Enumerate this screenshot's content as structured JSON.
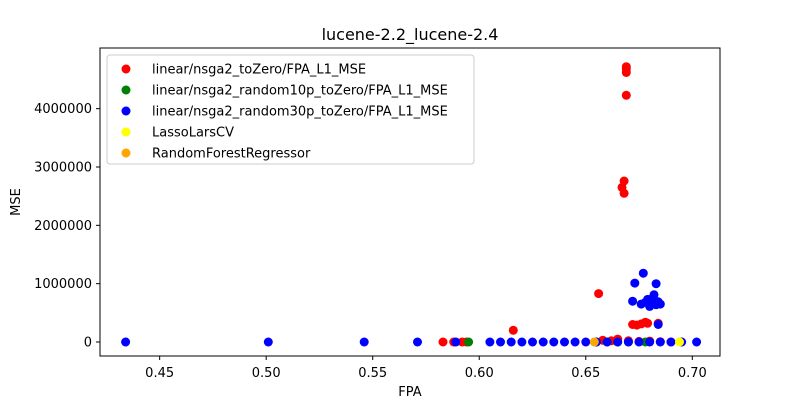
{
  "chart_data": {
    "type": "scatter",
    "title": "lucene-2.2_lucene-2.4",
    "xlabel": "FPA",
    "ylabel": "MSE",
    "xlim": [
      0.422,
      0.713
    ],
    "ylim": [
      -240000,
      5040000
    ],
    "xticks": [
      0.45,
      0.5,
      0.55,
      0.6,
      0.65,
      0.7
    ],
    "xtick_labels": [
      "0.45",
      "0.50",
      "0.55",
      "0.60",
      "0.65",
      "0.70"
    ],
    "yticks": [
      0,
      1000000,
      2000000,
      3000000,
      4000000
    ],
    "ytick_labels": [
      "0",
      "1000000",
      "2000000",
      "3000000",
      "4000000"
    ],
    "grid": false,
    "legend_position": "upper-left",
    "series": [
      {
        "name": "linear/nsga2_toZero/FPA_L1_MSE",
        "color": "#ff0000",
        "points": [
          [
            0.583,
            0
          ],
          [
            0.588,
            0
          ],
          [
            0.592,
            0
          ],
          [
            0.594,
            0
          ],
          [
            0.616,
            200000
          ],
          [
            0.656,
            830000
          ],
          [
            0.658,
            30000
          ],
          [
            0.662,
            20000
          ],
          [
            0.665,
            50000
          ],
          [
            0.667,
            2650000
          ],
          [
            0.668,
            2550000
          ],
          [
            0.668,
            2760000
          ],
          [
            0.669,
            4230000
          ],
          [
            0.669,
            4620000
          ],
          [
            0.669,
            4680000
          ],
          [
            0.669,
            4720000
          ],
          [
            0.672,
            300000
          ],
          [
            0.674,
            290000
          ],
          [
            0.676,
            310000
          ],
          [
            0.678,
            340000
          ],
          [
            0.679,
            320000
          ],
          [
            0.684,
            320000
          ],
          [
            0.67,
            20000
          ],
          [
            0.675,
            10000
          ],
          [
            0.68,
            15000
          ],
          [
            0.685,
            5000
          ],
          [
            0.69,
            0
          ],
          [
            0.695,
            0
          ]
        ]
      },
      {
        "name": "linear/nsga2_random10p_toZero/FPA_L1_MSE",
        "color": "#008000",
        "points": [
          [
            0.595,
            0
          ],
          [
            0.655,
            0
          ],
          [
            0.66,
            0
          ],
          [
            0.665,
            0
          ],
          [
            0.67,
            0
          ],
          [
            0.678,
            0
          ]
        ]
      },
      {
        "name": "linear/nsga2_random30p_toZero/FPA_L1_MSE",
        "color": "#0000ff",
        "points": [
          [
            0.434,
            0
          ],
          [
            0.501,
            0
          ],
          [
            0.546,
            0
          ],
          [
            0.571,
            0
          ],
          [
            0.589,
            0
          ],
          [
            0.605,
            0
          ],
          [
            0.61,
            0
          ],
          [
            0.615,
            0
          ],
          [
            0.62,
            0
          ],
          [
            0.625,
            0
          ],
          [
            0.63,
            0
          ],
          [
            0.635,
            0
          ],
          [
            0.64,
            0
          ],
          [
            0.645,
            0
          ],
          [
            0.65,
            0
          ],
          [
            0.655,
            0
          ],
          [
            0.66,
            0
          ],
          [
            0.665,
            0
          ],
          [
            0.67,
            0
          ],
          [
            0.675,
            0
          ],
          [
            0.68,
            0
          ],
          [
            0.685,
            0
          ],
          [
            0.69,
            0
          ],
          [
            0.695,
            0
          ],
          [
            0.702,
            0
          ],
          [
            0.672,
            700000
          ],
          [
            0.673,
            1010000
          ],
          [
            0.676,
            650000
          ],
          [
            0.677,
            1180000
          ],
          [
            0.678,
            680000
          ],
          [
            0.679,
            730000
          ],
          [
            0.68,
            610000
          ],
          [
            0.681,
            740000
          ],
          [
            0.682,
            810000
          ],
          [
            0.682,
            660000
          ],
          [
            0.683,
            1000000
          ],
          [
            0.683,
            640000
          ],
          [
            0.684,
            690000
          ],
          [
            0.684,
            300000
          ],
          [
            0.685,
            650000
          ]
        ]
      },
      {
        "name": "LassoLarsCV",
        "color": "#ffff00",
        "points": [
          [
            0.694,
            0
          ]
        ]
      },
      {
        "name": "RandomForestRegressor",
        "color": "#ffa500",
        "points": [
          [
            0.654,
            0
          ]
        ]
      }
    ]
  }
}
